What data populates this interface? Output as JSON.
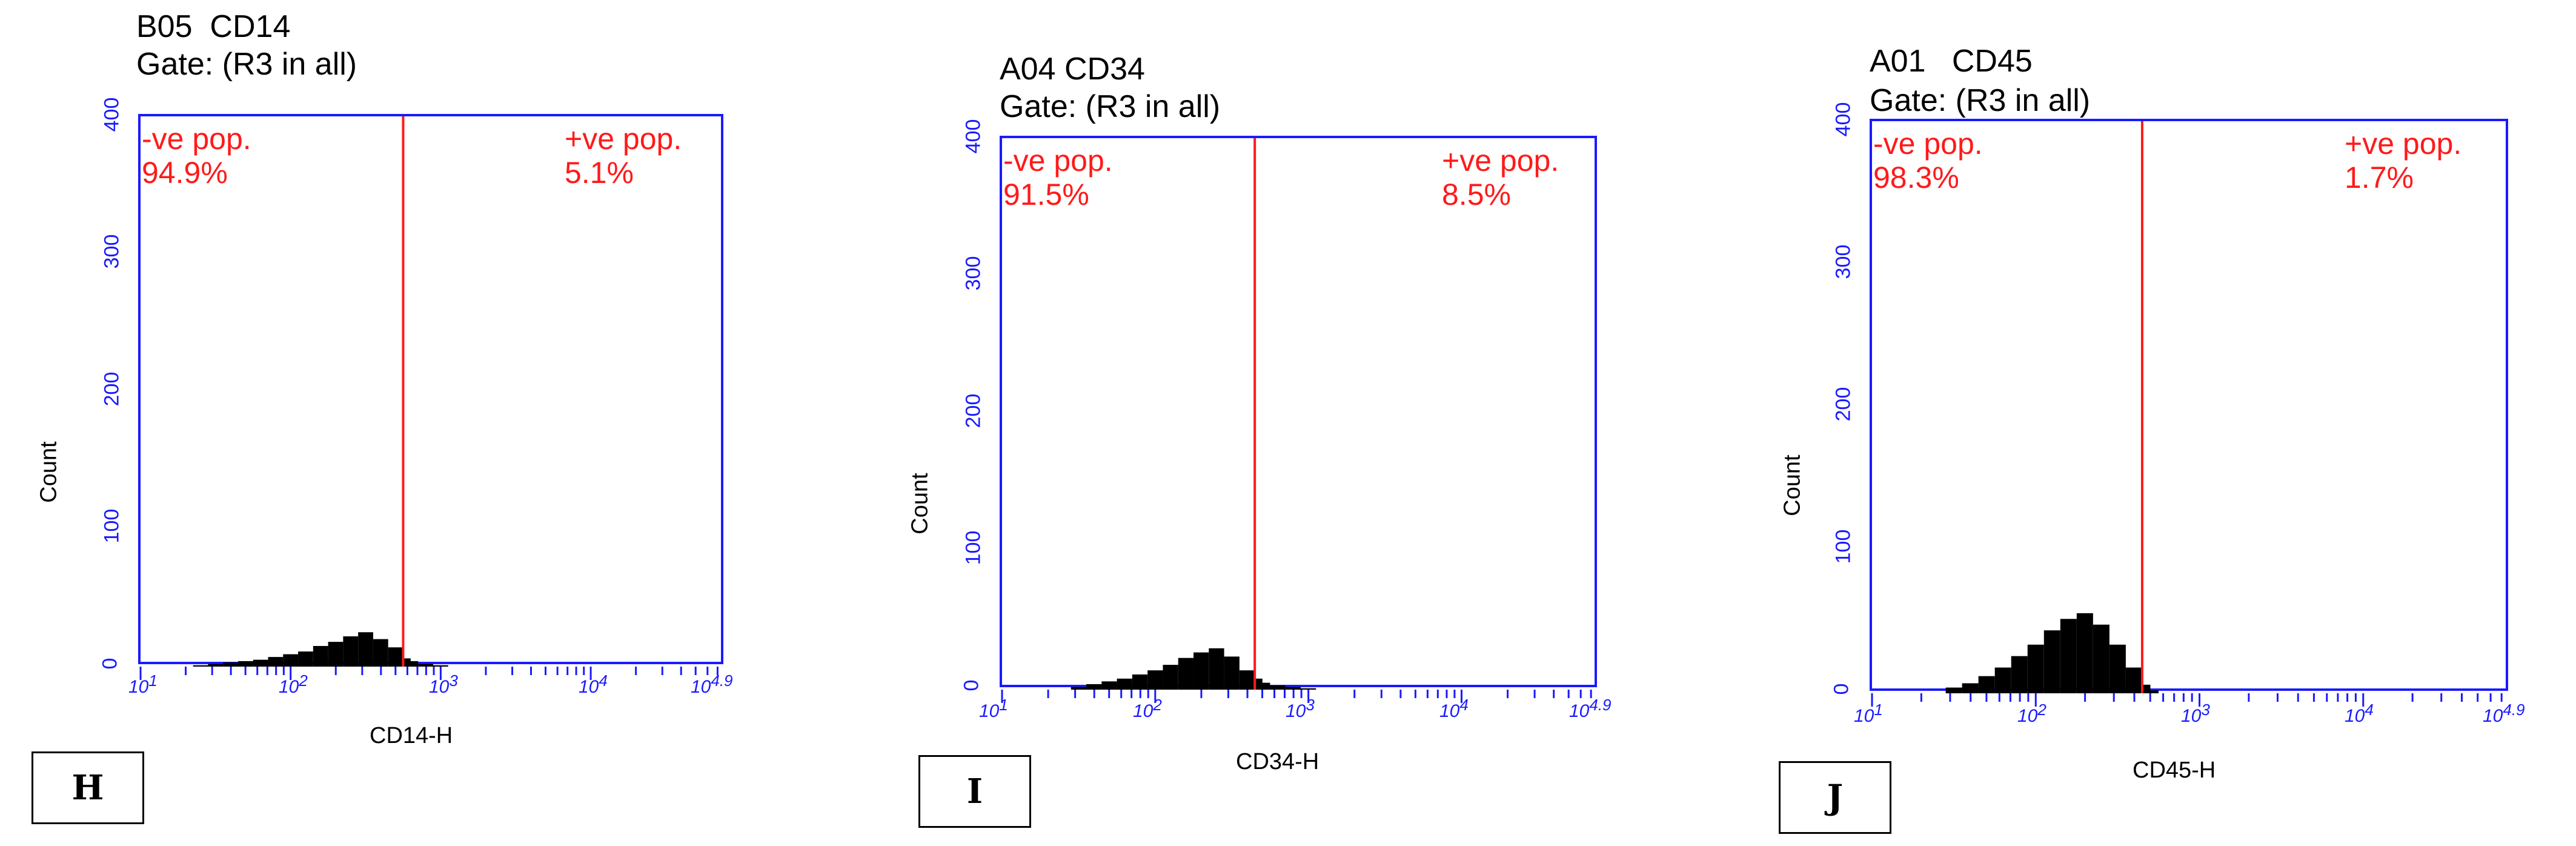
{
  "panels": [
    {
      "letter": "H",
      "title_line1": "B05  CD14",
      "title_line2": "Gate: (R3 in all)",
      "neg_label": "-ve pop.",
      "neg_pct": "94.9%",
      "pos_label": "+ve pop.",
      "pos_pct": "5.1%",
      "xlabel": "CD14-H",
      "ylabel": "Count"
    },
    {
      "letter": "I",
      "title_line1": "A04 CD34",
      "title_line2": "Gate: (R3 in all)",
      "neg_label": "-ve pop.",
      "neg_pct": "91.5%",
      "pos_label": "+ve pop.",
      "pos_pct": "8.5%",
      "xlabel": "CD34-H",
      "ylabel": "Count"
    },
    {
      "letter": "J",
      "title_line1": "A01   CD45",
      "title_line2": "Gate: (R3 in all)",
      "neg_label": "-ve pop.",
      "neg_pct": "98.3%",
      "pos_label": "+ve pop.",
      "pos_pct": "1.7%",
      "xlabel": "CD45-H",
      "ylabel": "Count"
    }
  ],
  "colors": {
    "axis": "#1a1aff",
    "gate": "#ff1a1a",
    "histogram": "#000000"
  },
  "chart_data": [
    {
      "type": "bar",
      "title": "B05  CD14",
      "xlabel": "CD14-H",
      "ylabel": "Count",
      "x_scale": "log",
      "xlim": [
        1,
        4.9
      ],
      "ylim": [
        0,
        400
      ],
      "y_ticks": [
        0,
        100,
        200,
        300,
        400
      ],
      "x_ticks": [
        "10^1",
        "10^2",
        "10^3",
        "10^4",
        "10^4.9"
      ],
      "gate_x": 2.75,
      "x": [
        1.4,
        1.5,
        1.6,
        1.7,
        1.8,
        1.9,
        2.0,
        2.1,
        2.2,
        2.3,
        2.4,
        2.5,
        2.6,
        2.7,
        2.75,
        2.8,
        2.9,
        3.0
      ],
      "values": [
        1,
        2,
        3,
        4,
        5,
        7,
        9,
        11,
        15,
        18,
        22,
        25,
        20,
        14,
        6,
        4,
        2,
        1
      ]
    },
    {
      "type": "bar",
      "title": "A04 CD34",
      "xlabel": "CD34-H",
      "ylabel": "Count",
      "x_scale": "log",
      "xlim": [
        1,
        4.9
      ],
      "ylim": [
        0,
        400
      ],
      "y_ticks": [
        0,
        100,
        200,
        300,
        400
      ],
      "x_ticks": [
        "10^1",
        "10^2",
        "10^3",
        "10^4",
        "10^4.9"
      ],
      "gate_x": 2.65,
      "x": [
        1.5,
        1.6,
        1.7,
        1.8,
        1.9,
        2.0,
        2.1,
        2.2,
        2.3,
        2.4,
        2.5,
        2.6,
        2.65,
        2.7,
        2.8,
        2.9,
        3.0
      ],
      "values": [
        2,
        4,
        6,
        8,
        11,
        14,
        18,
        23,
        27,
        30,
        24,
        14,
        8,
        5,
        3,
        2,
        1
      ]
    },
    {
      "type": "bar",
      "title": "A01   CD45",
      "xlabel": "CD45-H",
      "ylabel": "Count",
      "x_scale": "log",
      "xlim": [
        1,
        4.9
      ],
      "ylim": [
        0,
        400
      ],
      "y_ticks": [
        0,
        100,
        200,
        300,
        400
      ],
      "x_ticks": [
        "10^1",
        "10^2",
        "10^3",
        "10^4",
        "10^4.9"
      ],
      "gate_x": 2.65,
      "x": [
        1.5,
        1.6,
        1.7,
        1.8,
        1.9,
        2.0,
        2.1,
        2.2,
        2.3,
        2.4,
        2.5,
        2.6,
        2.65,
        2.7
      ],
      "values": [
        4,
        7,
        12,
        18,
        26,
        34,
        44,
        52,
        56,
        48,
        34,
        18,
        6,
        2
      ]
    }
  ]
}
